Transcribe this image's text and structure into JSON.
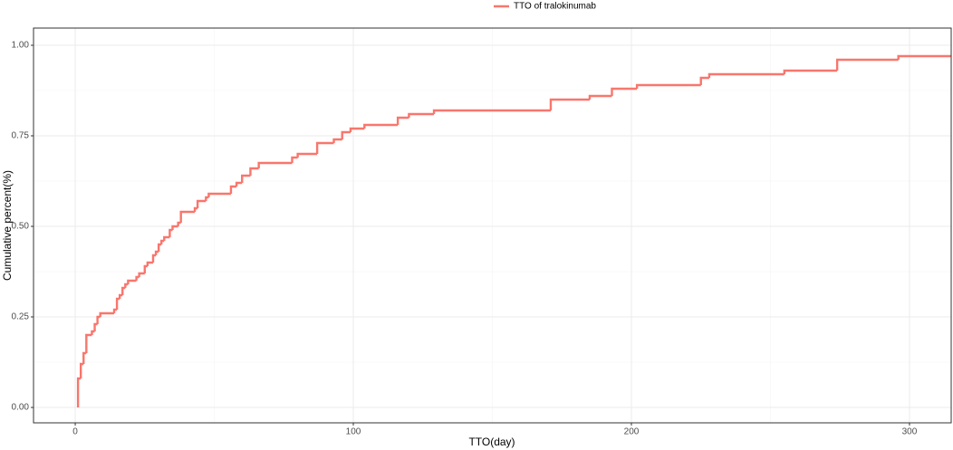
{
  "chart_data": {
    "type": "step",
    "legend_position": "top",
    "grid": true,
    "x_label": "TTO(day)",
    "y_label": "Cumulative percent(%)",
    "series": [
      {
        "name": "TTO of tralokinumab",
        "color": "#F8766D",
        "x": [
          1,
          1,
          2,
          3,
          4,
          6,
          7,
          8,
          9,
          14,
          15,
          16,
          17,
          18,
          19,
          22,
          23,
          25,
          26,
          28,
          29,
          30,
          31,
          32,
          34,
          35,
          37,
          38,
          43,
          44,
          47,
          48,
          56,
          58,
          60,
          63,
          66,
          78,
          80,
          87,
          93,
          96,
          99,
          104,
          116,
          120,
          129,
          171,
          185,
          193,
          202,
          225,
          228,
          255,
          274,
          296
        ],
        "values": [
          0,
          0.08,
          0.12,
          0.15,
          0.2,
          0.21,
          0.23,
          0.25,
          0.26,
          0.27,
          0.3,
          0.31,
          0.33,
          0.34,
          0.35,
          0.36,
          0.37,
          0.39,
          0.4,
          0.42,
          0.43,
          0.45,
          0.46,
          0.47,
          0.49,
          0.5,
          0.51,
          0.54,
          0.55,
          0.57,
          0.58,
          0.59,
          0.61,
          0.62,
          0.64,
          0.66,
          0.675,
          0.69,
          0.7,
          0.73,
          0.74,
          0.76,
          0.77,
          0.78,
          0.8,
          0.81,
          0.82,
          0.85,
          0.86,
          0.88,
          0.89,
          0.91,
          0.92,
          0.93,
          0.96,
          0.97
        ]
      }
    ],
    "xlim": [
      -15,
      315
    ],
    "xticks": [
      0,
      100,
      200,
      300
    ],
    "ylim": [
      -0.0425,
      1.0475
    ],
    "yticks": [
      {
        "value": 0,
        "label": "0.00"
      },
      0.25,
      {
        "value": 0.5,
        "label": "0.50"
      },
      0.75,
      {
        "value": 1,
        "label": "1.00"
      }
    ]
  }
}
